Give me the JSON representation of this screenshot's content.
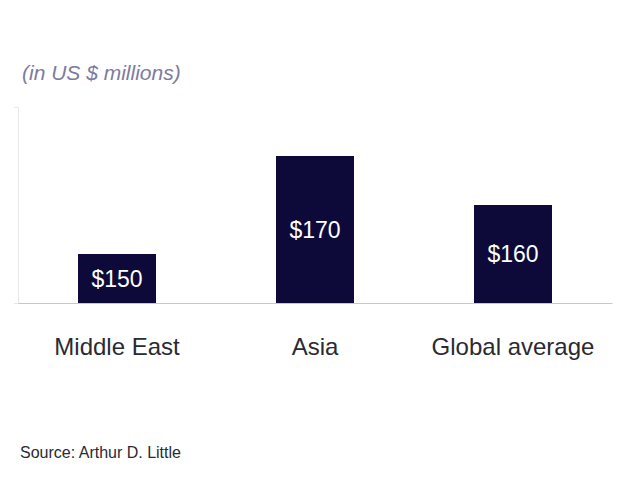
{
  "chart_data": {
    "type": "bar",
    "subtitle": "(in US $ millions)",
    "categories": [
      "Middle East",
      "Asia",
      "Global average"
    ],
    "values": [
      150,
      170,
      160
    ],
    "value_labels": [
      "$150",
      "$170",
      "$160"
    ],
    "color": "#0d0a3a",
    "ylim": [
      140,
      180
    ],
    "yticks": [
      140,
      180
    ],
    "grid": false,
    "data_labels": true,
    "tick_labels": "x",
    "source": "Source: Arthur D. Little"
  }
}
